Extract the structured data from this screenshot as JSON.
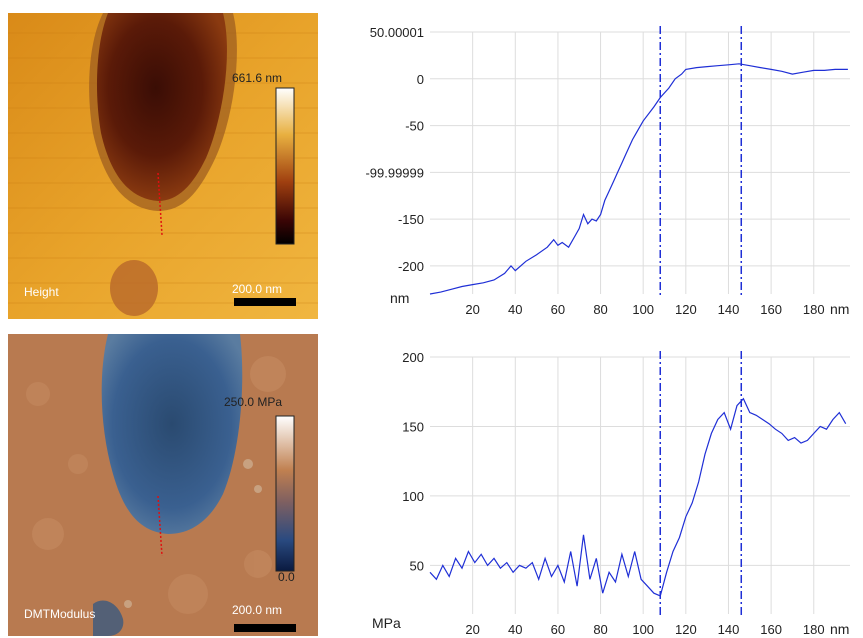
{
  "height_panel": {
    "label": "Height",
    "colorbar_max": "661.6 nm",
    "scalebar": "200.0 nm"
  },
  "modulus_panel": {
    "label": "DMTModulus",
    "colorbar_max": "250.0 MPa",
    "colorbar_min": "0.0",
    "scalebar": "200.0 nm"
  },
  "colors": {
    "line": "#1f2fd6",
    "profile_marker": "#e01010",
    "grid": "#dddddd"
  },
  "chart_data": [
    {
      "type": "line",
      "xlabel": "nm",
      "ylabel": "nm",
      "xlim": [
        0,
        197
      ],
      "ylim": [
        -230,
        50
      ],
      "xticks": [
        20,
        40,
        60,
        80,
        100,
        120,
        140,
        160,
        180
      ],
      "yticks": [
        {
          "value": 50,
          "label": "50.00001"
        },
        {
          "value": 0,
          "label": "0"
        },
        {
          "value": -50,
          "label": "-50"
        },
        {
          "value": -100,
          "label": "-99.99999"
        },
        {
          "value": -150,
          "label": "-150"
        },
        {
          "value": -200,
          "label": "-200"
        }
      ],
      "markers_x": [
        108,
        146
      ],
      "series": [
        {
          "x": [
            0,
            5,
            10,
            15,
            20,
            25,
            30,
            35,
            38,
            40,
            45,
            50,
            55,
            58,
            60,
            62,
            65,
            68,
            70,
            72,
            74,
            76,
            78,
            80,
            82,
            84,
            86,
            88,
            90,
            92,
            95,
            100,
            105,
            108,
            112,
            115,
            118,
            120,
            125,
            130,
            135,
            140,
            145,
            150,
            155,
            160,
            165,
            170,
            175,
            180,
            185,
            190,
            196
          ],
          "values": [
            -230,
            -228,
            -225,
            -222,
            -220,
            -218,
            -215,
            -208,
            -200,
            -205,
            -195,
            -188,
            -180,
            -172,
            -178,
            -175,
            -180,
            -168,
            -160,
            -145,
            -155,
            -150,
            -152,
            -145,
            -130,
            -120,
            -110,
            -100,
            -90,
            -80,
            -65,
            -45,
            -30,
            -20,
            -10,
            0,
            5,
            10,
            12,
            13,
            14,
            15,
            16,
            14,
            12,
            10,
            8,
            5,
            7,
            9,
            9,
            10,
            10
          ]
        }
      ]
    },
    {
      "type": "line",
      "xlabel": "nm",
      "ylabel": "MPa",
      "xlim": [
        0,
        197
      ],
      "ylim": [
        15,
        200
      ],
      "xticks": [
        20,
        40,
        60,
        80,
        100,
        120,
        140,
        160,
        180
      ],
      "yticks": [
        {
          "value": 200,
          "label": "200"
        },
        {
          "value": 150,
          "label": "150"
        },
        {
          "value": 100,
          "label": "100"
        },
        {
          "value": 50,
          "label": "50"
        }
      ],
      "markers_x": [
        108,
        146
      ],
      "series": [
        {
          "x": [
            0,
            3,
            6,
            9,
            12,
            15,
            18,
            21,
            24,
            27,
            30,
            33,
            36,
            39,
            42,
            45,
            48,
            51,
            54,
            57,
            60,
            63,
            66,
            69,
            72,
            75,
            78,
            81,
            84,
            87,
            90,
            93,
            96,
            99,
            102,
            105,
            108,
            111,
            114,
            117,
            120,
            123,
            126,
            129,
            132,
            135,
            138,
            141,
            144,
            147,
            150,
            153,
            156,
            159,
            162,
            165,
            168,
            171,
            174,
            177,
            180,
            183,
            186,
            189,
            192,
            195
          ],
          "values": [
            45,
            40,
            50,
            42,
            55,
            48,
            60,
            52,
            58,
            50,
            55,
            48,
            52,
            45,
            50,
            48,
            52,
            40,
            55,
            42,
            50,
            38,
            60,
            35,
            72,
            40,
            55,
            30,
            45,
            38,
            58,
            42,
            60,
            40,
            35,
            30,
            28,
            45,
            60,
            70,
            85,
            95,
            110,
            130,
            145,
            155,
            160,
            148,
            165,
            170,
            160,
            158,
            155,
            152,
            148,
            145,
            140,
            142,
            138,
            140,
            145,
            150,
            148,
            155,
            160,
            152
          ]
        }
      ]
    }
  ]
}
